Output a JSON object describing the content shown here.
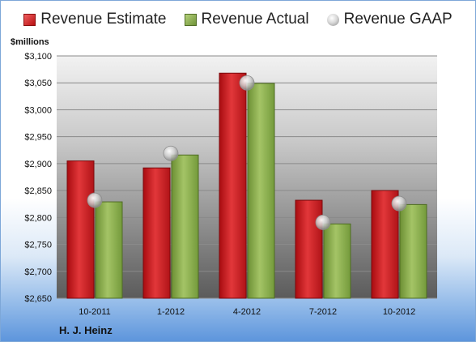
{
  "legend": {
    "estimate": "Revenue Estimate",
    "actual": "Revenue Actual",
    "gaap": "Revenue GAAP"
  },
  "unit_label": "$millions",
  "company": "H. J. Heinz",
  "colors": {
    "estimate": "#c81a1f",
    "actual": "#8db050",
    "gaap": "#b0b0b0"
  },
  "chart_data": {
    "type": "bar",
    "categories": [
      "10-2011",
      "1-2012",
      "4-2012",
      "7-2012",
      "10-2012"
    ],
    "series": [
      {
        "name": "Revenue Estimate",
        "values": [
          2905,
          2892,
          3068,
          2832,
          2850
        ]
      },
      {
        "name": "Revenue Actual",
        "values": [
          2829,
          2916,
          3049,
          2788,
          2824
        ]
      },
      {
        "name": "Revenue GAAP",
        "values": [
          2832,
          2919,
          3050,
          2791,
          2826
        ]
      }
    ],
    "ylabel": "$millions",
    "ylim": [
      2650,
      3100
    ],
    "yticks": [
      2650,
      2700,
      2750,
      2800,
      2850,
      2900,
      2950,
      3000,
      3050,
      3100
    ],
    "ytick_labels": [
      "$2,650",
      "$2,700",
      "$2,750",
      "$2,800",
      "$2,850",
      "$2,900",
      "$2,950",
      "$3,000",
      "$3,050",
      "$3,100"
    ],
    "grid": true,
    "legend_position": "top"
  }
}
